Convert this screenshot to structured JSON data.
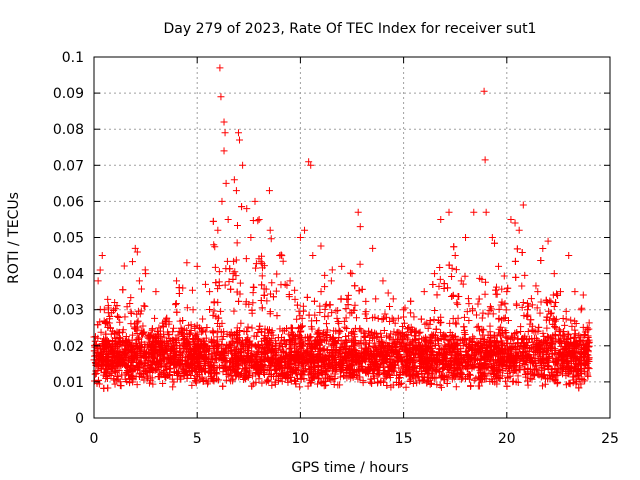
{
  "chart_data": {
    "type": "scatter",
    "title": "Day 279 of 2023, Rate Of TEC Index for receiver sut1",
    "xlabel": "GPS time / hours",
    "ylabel": "ROTI / TECUs",
    "xlim": [
      0,
      25
    ],
    "ylim": [
      0,
      0.1
    ],
    "x_ticks": [
      0,
      5,
      10,
      15,
      20,
      25
    ],
    "x_tick_labels": [
      "0",
      "5",
      "10",
      "15",
      "20",
      "25"
    ],
    "y_ticks": [
      0,
      0.01,
      0.02,
      0.03,
      0.04,
      0.05,
      0.06,
      0.07,
      0.08,
      0.09,
      0.1
    ],
    "y_tick_labels": [
      "0",
      "0.01",
      "0.02",
      "0.03",
      "0.04",
      "0.05",
      "0.06",
      "0.07",
      "0.08",
      "0.09",
      "0.1"
    ],
    "grid": true,
    "marker": "+",
    "marker_color": "#ff0000",
    "series": [
      {
        "name": "ROTI",
        "points": [
          [
            0.1,
            0.018
          ],
          [
            0.2,
            0.038
          ],
          [
            0.3,
            0.041
          ],
          [
            0.4,
            0.045
          ],
          [
            0.5,
            0.03
          ],
          [
            0.8,
            0.025
          ],
          [
            1.0,
            0.032
          ],
          [
            1.5,
            0.028
          ],
          [
            2.0,
            0.047
          ],
          [
            2.1,
            0.046
          ],
          [
            2.2,
            0.038
          ],
          [
            2.5,
            0.04
          ],
          [
            3.0,
            0.035
          ],
          [
            3.5,
            0.026
          ],
          [
            4.0,
            0.038
          ],
          [
            4.3,
            0.036
          ],
          [
            4.5,
            0.043
          ],
          [
            4.8,
            0.03
          ],
          [
            5.0,
            0.042
          ],
          [
            5.4,
            0.037
          ],
          [
            5.6,
            0.035
          ],
          [
            5.8,
            0.048
          ],
          [
            6.0,
            0.052
          ],
          [
            6.1,
            0.097
          ],
          [
            6.15,
            0.089
          ],
          [
            6.3,
            0.082
          ],
          [
            6.35,
            0.079
          ],
          [
            6.3,
            0.074
          ],
          [
            6.4,
            0.065
          ],
          [
            6.2,
            0.06
          ],
          [
            6.5,
            0.055
          ],
          [
            6.8,
            0.066
          ],
          [
            6.9,
            0.063
          ],
          [
            7.0,
            0.079
          ],
          [
            7.05,
            0.077
          ],
          [
            7.2,
            0.07
          ],
          [
            7.4,
            0.058
          ],
          [
            7.6,
            0.05
          ],
          [
            7.8,
            0.06
          ],
          [
            8.0,
            0.055
          ],
          [
            8.5,
            0.063
          ],
          [
            9.0,
            0.045
          ],
          [
            9.5,
            0.038
          ],
          [
            10.0,
            0.05
          ],
          [
            10.2,
            0.052
          ],
          [
            10.4,
            0.071
          ],
          [
            10.5,
            0.07
          ],
          [
            10.6,
            0.045
          ],
          [
            11.0,
            0.035
          ],
          [
            11.5,
            0.038
          ],
          [
            12.0,
            0.042
          ],
          [
            12.5,
            0.04
          ],
          [
            12.8,
            0.057
          ],
          [
            12.9,
            0.053
          ],
          [
            13.5,
            0.047
          ],
          [
            14.0,
            0.038
          ],
          [
            14.5,
            0.033
          ],
          [
            15.0,
            0.03
          ],
          [
            15.5,
            0.028
          ],
          [
            16.0,
            0.035
          ],
          [
            16.5,
            0.04
          ],
          [
            16.8,
            0.055
          ],
          [
            17.2,
            0.057
          ],
          [
            17.5,
            0.045
          ],
          [
            18.0,
            0.05
          ],
          [
            18.4,
            0.057
          ],
          [
            18.9,
            0.0905
          ],
          [
            18.95,
            0.0715
          ],
          [
            19.0,
            0.057
          ],
          [
            19.3,
            0.05
          ],
          [
            19.6,
            0.042
          ],
          [
            20.0,
            0.035
          ],
          [
            20.2,
            0.055
          ],
          [
            20.4,
            0.054
          ],
          [
            20.6,
            0.052
          ],
          [
            20.8,
            0.059
          ],
          [
            21.0,
            0.03
          ],
          [
            21.5,
            0.035
          ],
          [
            22.0,
            0.049
          ],
          [
            22.3,
            0.04
          ],
          [
            22.6,
            0.035
          ],
          [
            23.0,
            0.045
          ],
          [
            23.3,
            0.035
          ],
          [
            23.6,
            0.03
          ],
          [
            23.9,
            0.025
          ]
        ],
        "dense_band": {
          "x_range": [
            0,
            24
          ],
          "baseline_range": [
            0.005,
            0.025
          ],
          "typical_center": 0.015
        }
      }
    ]
  }
}
